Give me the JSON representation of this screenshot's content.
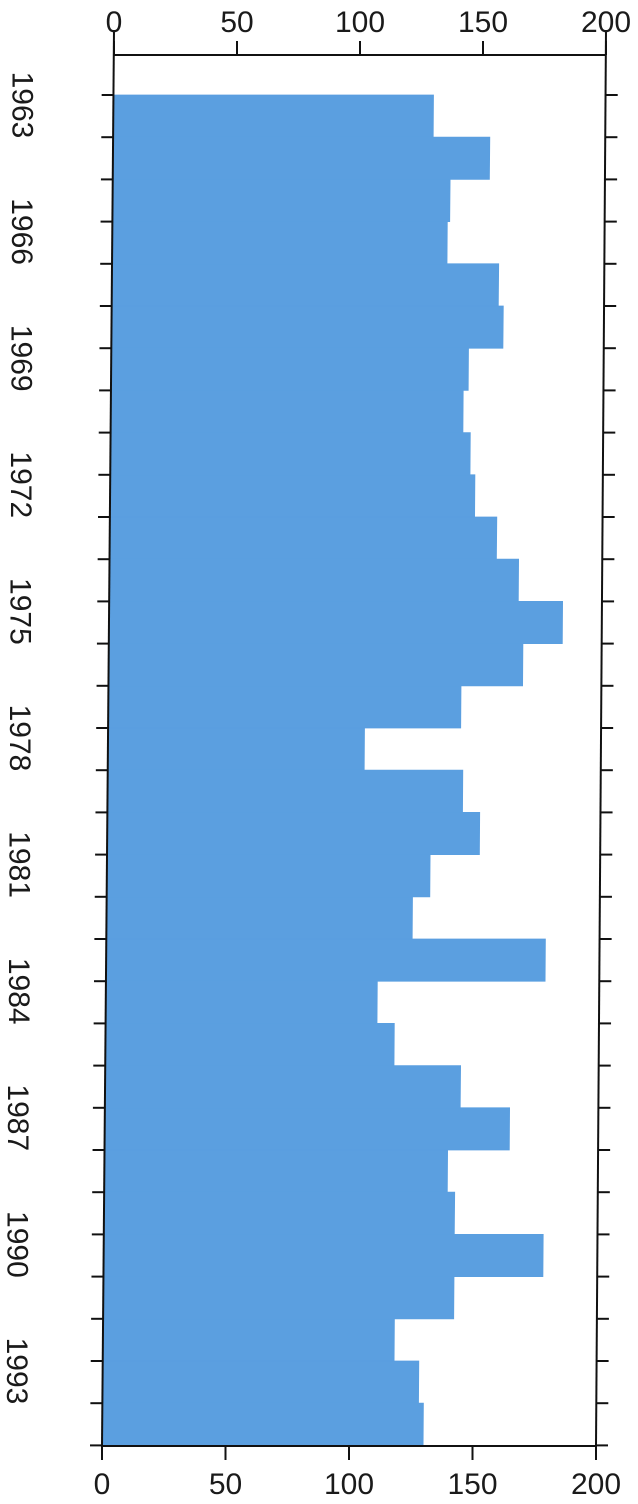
{
  "chart_data": {
    "type": "bar",
    "orientation": "horizontal",
    "categories": [
      "1963",
      "1964",
      "1965",
      "1966",
      "1967",
      "1968",
      "1969",
      "1970",
      "1971",
      "1972",
      "1973",
      "1974",
      "1975",
      "1976",
      "1977",
      "1978",
      "1979",
      "1980",
      "1981",
      "1982",
      "1983",
      "1984",
      "1985",
      "1986",
      "1987",
      "1988",
      "1989",
      "1990",
      "1991",
      "1992",
      "1993",
      "1994"
    ],
    "values": [
      130,
      153,
      137,
      136,
      157,
      159,
      145,
      143,
      146,
      148,
      157,
      166,
      184,
      168,
      143,
      104,
      144,
      151,
      131,
      124,
      178,
      110,
      117,
      144,
      164,
      139,
      142,
      178,
      142,
      118,
      128,
      130
    ],
    "category_labels": [
      "1963",
      "1966",
      "1969",
      "1972",
      "1975",
      "1978",
      "1981",
      "1984",
      "1987",
      "1990",
      "1993"
    ],
    "xlim": [
      0,
      200
    ],
    "x_ticks": [
      "0",
      "50",
      "100",
      "150",
      "200"
    ],
    "title": "",
    "xlabel": "",
    "ylabel": "",
    "grid": false,
    "bar_color": "#5b9fe0",
    "axis_color": "#111111"
  }
}
